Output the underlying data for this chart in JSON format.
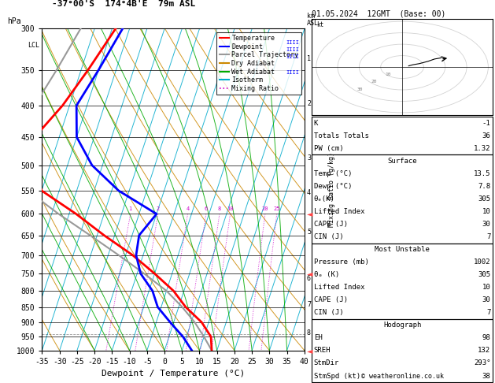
{
  "title_left": "-37°00'S  174°4B'E  79m ASL",
  "title_right_top": "01.05.2024  12GMT  (Base: 00)",
  "background": "#ffffff",
  "pressure_levels": [
    300,
    350,
    400,
    450,
    500,
    550,
    600,
    650,
    700,
    750,
    800,
    850,
    900,
    950,
    1000
  ],
  "pressure_min": 300,
  "pressure_max": 1000,
  "temp_min": -35,
  "temp_max": 40,
  "xlabel": "Dewpoint / Temperature (°C)",
  "km_ticks": [
    1,
    2,
    3,
    4,
    5,
    6,
    7,
    8
  ],
  "km_pressures": [
    895,
    755,
    617,
    542,
    467,
    393,
    356,
    320
  ],
  "temp_profile_T": [
    13.5,
    12,
    8,
    2,
    -3,
    -10,
    -18,
    -28,
    -38,
    -50,
    -55,
    -57,
    -52,
    -48,
    -44
  ],
  "temp_profile_P": [
    1000,
    950,
    900,
    850,
    800,
    750,
    700,
    650,
    600,
    550,
    500,
    450,
    400,
    350,
    300
  ],
  "dewp_profile_T": [
    7.8,
    4,
    -1,
    -6,
    -9,
    -14,
    -17,
    -18,
    -15,
    -28,
    -38,
    -45,
    -48,
    -45,
    -42
  ],
  "dewp_profile_P": [
    1000,
    950,
    900,
    850,
    800,
    750,
    700,
    650,
    600,
    550,
    500,
    450,
    400,
    350,
    300
  ],
  "parcel_T": [
    13.5,
    10,
    6,
    1,
    -5,
    -13,
    -22,
    -32,
    -43,
    -54,
    -60,
    -63,
    -60,
    -57,
    -54
  ],
  "parcel_P": [
    1000,
    950,
    900,
    850,
    800,
    750,
    700,
    650,
    600,
    550,
    500,
    450,
    400,
    350,
    300
  ],
  "lcl_pressure": 940,
  "color_temp": "#ff0000",
  "color_dewp": "#0000ff",
  "color_parcel": "#999999",
  "color_dryadiabat": "#cc8800",
  "color_wetadiabat": "#00aa00",
  "color_isotherm": "#00aacc",
  "color_mixratio": "#cc00cc",
  "skew_T": 30,
  "table_K": "-1",
  "table_TT": "36",
  "table_PW": "1.32",
  "surf_temp": "13.5",
  "surf_dewp": "7.8",
  "surf_thetae": "305",
  "surf_LI": "10",
  "surf_CAPE": "30",
  "surf_CIN": "7",
  "mu_pressure": "1002",
  "mu_thetae": "305",
  "mu_LI": "10",
  "mu_CAPE": "30",
  "mu_CIN": "7",
  "hodo_EH": "98",
  "hodo_SREH": "132",
  "hodo_StmDir": "293°",
  "hodo_StmSpd": "38",
  "copyright": "© weatheronline.co.uk",
  "legend_entries": [
    "Temperature",
    "Dewpoint",
    "Parcel Trajectory",
    "Dry Adiabat",
    "Wet Adiabat",
    "Isotherm",
    "Mixing Ratio"
  ],
  "legend_colors": [
    "#ff0000",
    "#0000ff",
    "#999999",
    "#cc8800",
    "#00aa00",
    "#00aacc",
    "#cc00cc"
  ],
  "legend_styles": [
    "-",
    "-",
    "-",
    "-",
    "-",
    "-",
    ":"
  ],
  "mixing_ratios": [
    1,
    2,
    4,
    6,
    8,
    10,
    20,
    25
  ]
}
